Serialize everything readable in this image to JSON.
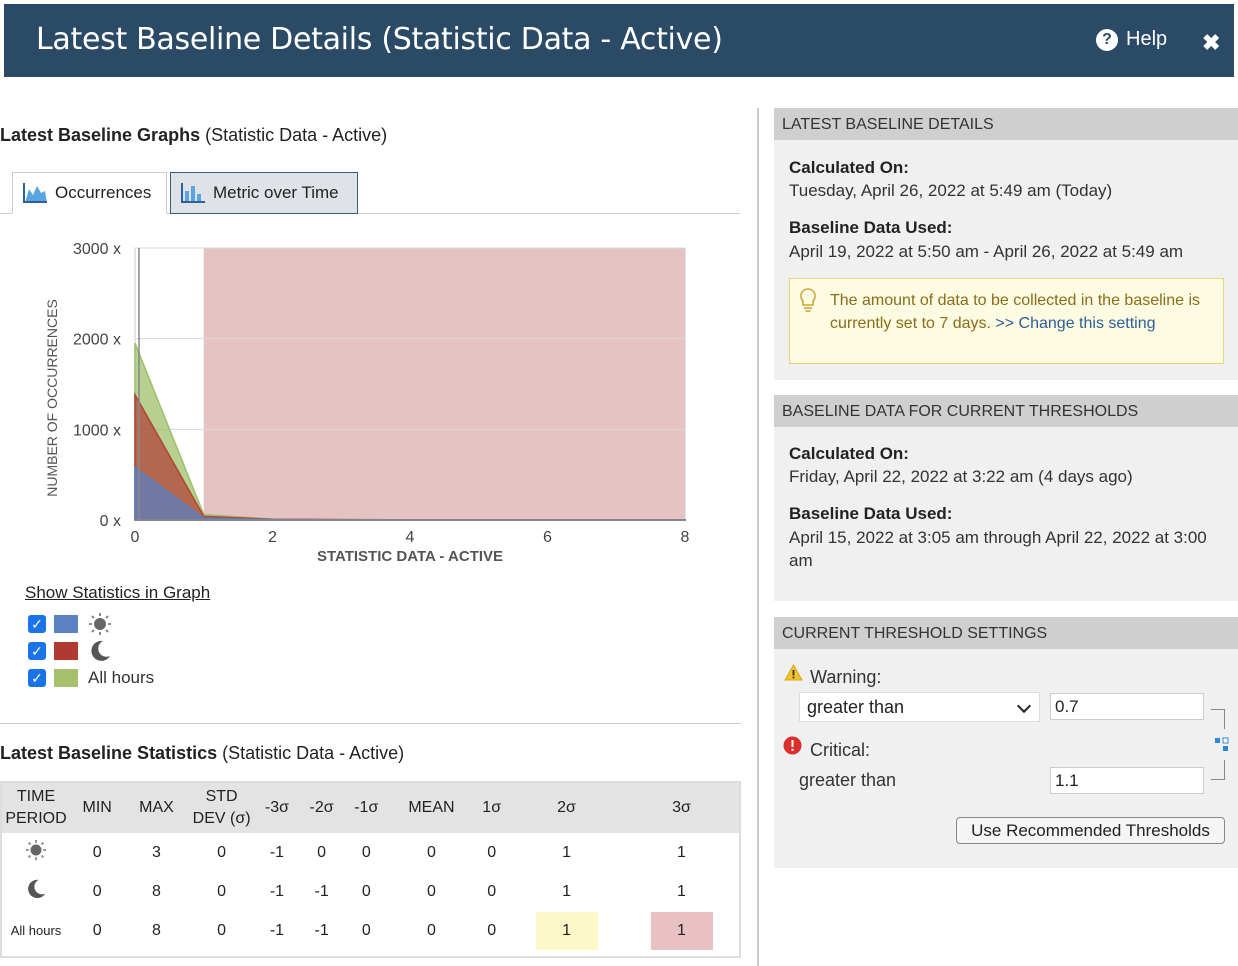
{
  "header": {
    "title": "Latest Baseline Details (Statistic Data - Active)",
    "help_label": "Help",
    "close_glyph": "✖"
  },
  "graphs": {
    "title_bold": "Latest Baseline Graphs",
    "title_suffix": "(Statistic Data - Active)",
    "tabs": [
      {
        "label": "Occurrences",
        "active": true
      },
      {
        "label": "Metric over Time",
        "active": false
      }
    ]
  },
  "chart_data": {
    "type": "area",
    "xlabel": "STATISTIC DATA - ACTIVE",
    "ylabel": "NUMBER OF OCCURRENCES",
    "x_ticks": [
      "0",
      "2",
      "4",
      "6",
      "8"
    ],
    "y_ticks": [
      "0 x",
      "1000 x",
      "2000 x",
      "3000 x"
    ],
    "xlim": [
      0,
      8
    ],
    "ylim": [
      0,
      3000
    ],
    "threshold_band": {
      "from": 1,
      "to": 8,
      "color": "#e6c3c3"
    },
    "grid": true,
    "series": [
      {
        "color": "#9cc06a",
        "x": [
          0,
          1,
          2,
          3,
          4,
          5,
          6,
          7,
          8
        ],
        "y": [
          1950,
          60,
          10,
          5,
          3,
          2,
          2,
          1,
          1
        ]
      },
      {
        "color": "#b24438",
        "x": [
          0,
          1,
          2,
          3,
          4,
          5,
          6,
          7,
          8
        ],
        "y": [
          1380,
          40,
          8,
          4,
          2,
          2,
          1,
          1,
          1
        ]
      },
      {
        "color": "#5b7ec0",
        "x": [
          0,
          1,
          2,
          3,
          4,
          5,
          6,
          7,
          8
        ],
        "y": [
          580,
          20,
          5,
          3,
          2,
          1,
          1,
          1,
          1
        ]
      }
    ]
  },
  "legend": {
    "title": "Show Statistics in Graph",
    "rows": [
      {
        "color": "#5b82c4",
        "icon": "sun-icon",
        "label": ""
      },
      {
        "color": "#b03a30",
        "icon": "moon-icon",
        "label": ""
      },
      {
        "color": "#a7c06c",
        "icon": "",
        "label": "All hours"
      }
    ]
  },
  "stats": {
    "title_bold": "Latest Baseline Statistics",
    "title_suffix": "(Statistic Data - Active)",
    "columns": [
      "TIME PERIOD",
      "MIN",
      "MAX",
      "STD DEV (σ)",
      "-3σ",
      "-2σ",
      "-1σ",
      "MEAN",
      "1σ",
      "2σ",
      "3σ"
    ],
    "rows": [
      {
        "period_icon": "sun-icon",
        "period": "",
        "values": [
          "0",
          "3",
          "0",
          "-1",
          "0",
          "0",
          "0",
          "0",
          "1",
          "1"
        ]
      },
      {
        "period_icon": "moon-icon",
        "period": "",
        "values": [
          "0",
          "8",
          "0",
          "-1",
          "-1",
          "0",
          "0",
          "0",
          "1",
          "1"
        ]
      },
      {
        "period_icon": "",
        "period": "All hours",
        "values": [
          "0",
          "8",
          "0",
          "-1",
          "-1",
          "0",
          "0",
          "0",
          "1",
          "1"
        ]
      }
    ]
  },
  "latest": {
    "head": "LATEST BASELINE DETAILS",
    "calc_label": "Calculated On:",
    "calc_value": "Tuesday, April 26, 2022 at 5:49 am (Today)",
    "used_label": "Baseline Data Used:",
    "used_value": "April 19, 2022 at 5:50 am - April 26, 2022 at 5:49 am",
    "tip_text": "The amount of data to be collected in the baseline is currently set to 7 days.",
    "tip_link": ">> Change this setting"
  },
  "current": {
    "head": "BASELINE DATA FOR CURRENT THRESHOLDS",
    "calc_label": "Calculated On:",
    "calc_value": "Friday, April 22, 2022 at 3:22 am (4 days ago)",
    "used_label": "Baseline Data Used:",
    "used_value": "April 15, 2022 at 3:05 am through April 22, 2022 at 3:00 am"
  },
  "thresholds": {
    "head": "CURRENT THRESHOLD SETTINGS",
    "warning_label": "Warning:",
    "warning_op": "greater than",
    "warning_value": "0.7",
    "critical_label": "Critical:",
    "critical_op": "greater than",
    "critical_value": "1.1",
    "button": "Use Recommended Thresholds"
  }
}
